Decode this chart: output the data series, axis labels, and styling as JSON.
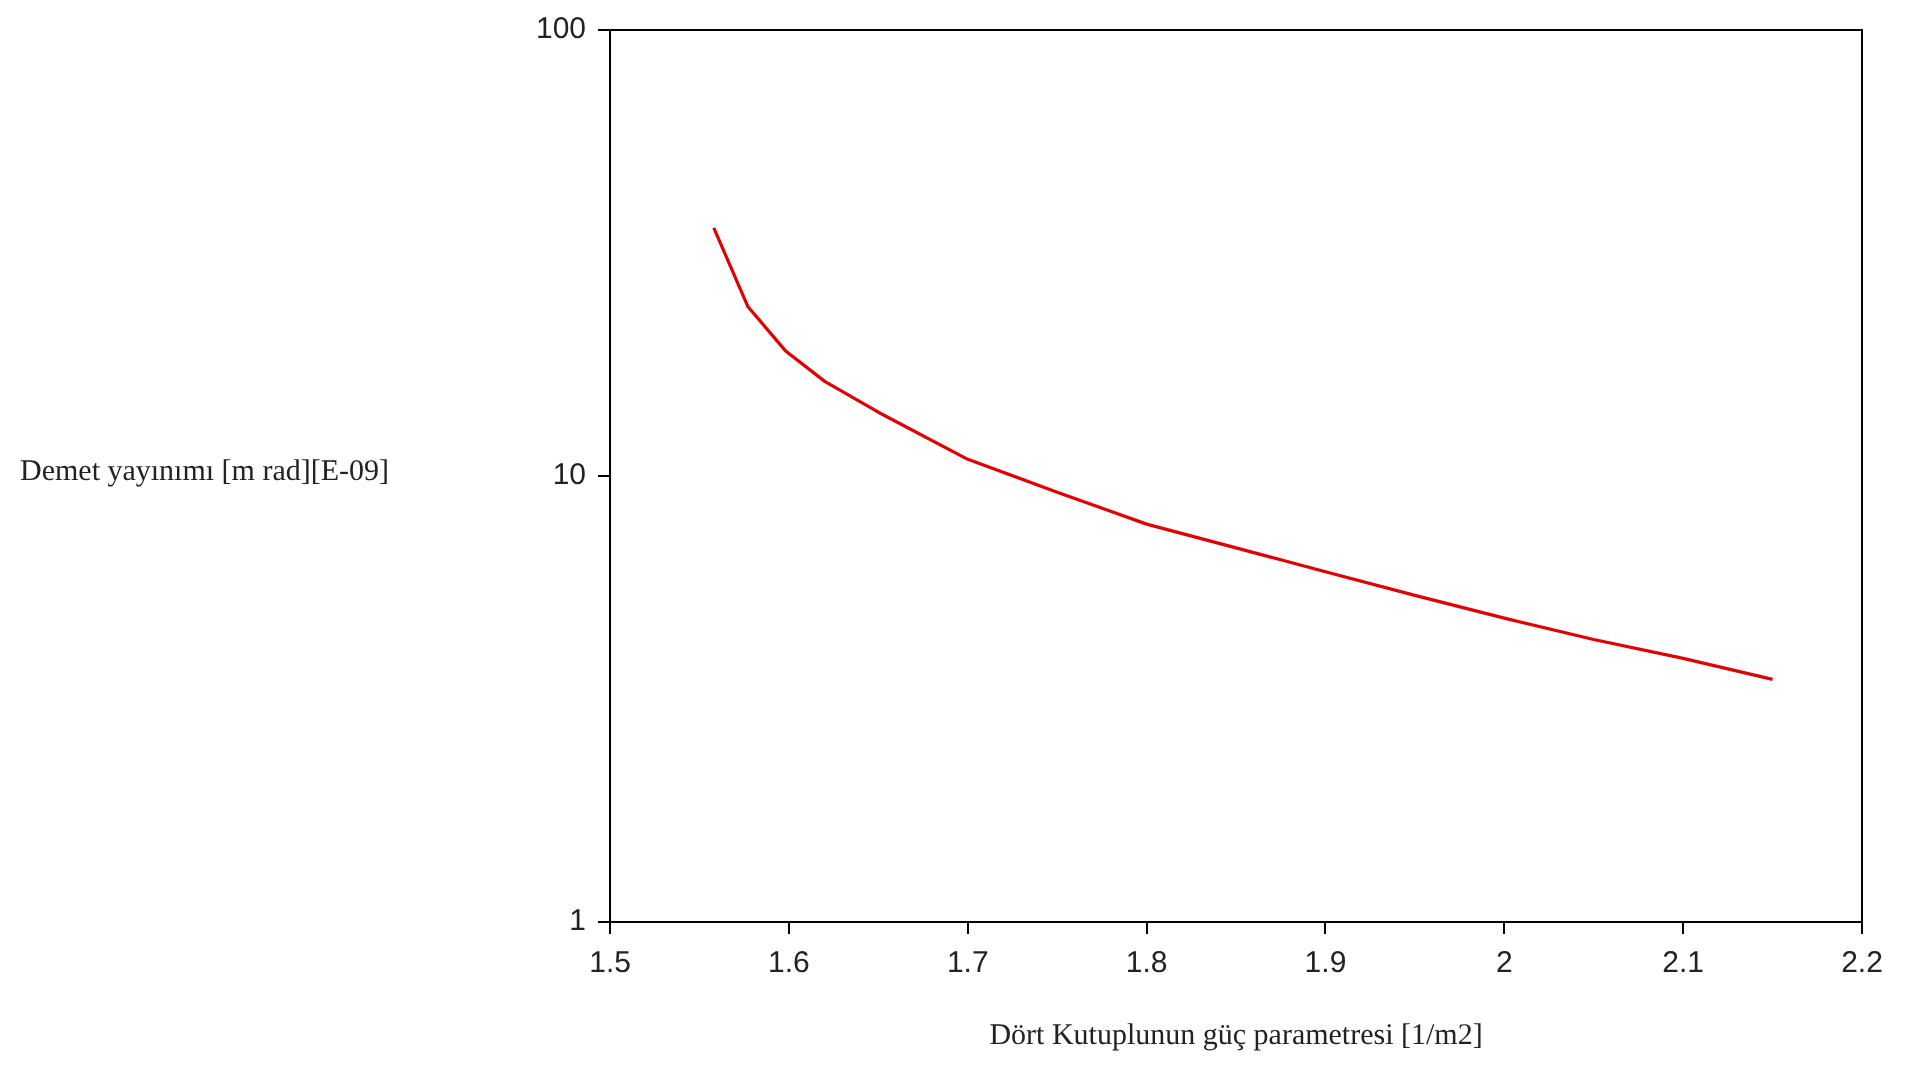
{
  "chart_data": {
    "type": "line",
    "xlabel": "Dört Kutuplunun güç parametresi [1/m2]",
    "ylabel": "Demet yayınımı [m rad][E-09]",
    "log": "y",
    "grid": false,
    "legend": false,
    "marker": "none",
    "line_style": "solid",
    "xlim": [
      1.5,
      2.2
    ],
    "xticks": [
      1.5,
      1.6,
      1.7,
      1.8,
      1.9,
      2,
      2.1,
      2.2
    ],
    "ylim": [
      1,
      100
    ],
    "yticks": [
      1,
      10,
      100
    ],
    "series": [
      {
        "color": "#e00000",
        "x": [
          1.558,
          1.577,
          1.598,
          1.62,
          1.65,
          1.7,
          1.75,
          1.8,
          1.85,
          1.9,
          1.95,
          2.0,
          2.05,
          2.1,
          2.15
        ],
        "values": [
          36,
          24,
          19.1,
          16.3,
          13.9,
          10.9,
          9.2,
          7.8,
          6.9,
          6.1,
          5.4,
          4.8,
          4.3,
          3.9,
          3.5
        ]
      }
    ]
  }
}
